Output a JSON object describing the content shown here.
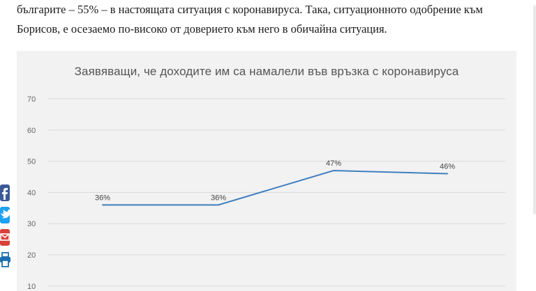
{
  "article": {
    "line1": "българите – 55% – в настоящата ситуация с коронавируса. Така, ситуационното одобрение към",
    "line2": "Борисов, е осезаемо по-високо от доверието към него в обичайна ситуация."
  },
  "share": {
    "facebook_icon": "facebook-icon",
    "twitter_icon": "twitter-icon",
    "email_icon": "email-icon",
    "print_icon": "print-icon",
    "colors": {
      "facebook": "#3b5998",
      "twitter": "#1da1f2",
      "email": "#d8413a",
      "print": "#1b6fb0"
    }
  },
  "chart_data": {
    "type": "line",
    "title": "Заявяващи, че доходите им са намалели във връзка с коронавируса",
    "categories": [
      "",
      "",
      "",
      ""
    ],
    "series": [
      {
        "values": [
          36,
          36,
          47,
          46
        ],
        "color": "#3f7fbf"
      }
    ],
    "data_labels": [
      "36%",
      "36%",
      "47%",
      "46%"
    ],
    "y_ticks": [
      70,
      60,
      50,
      40,
      30,
      20,
      10
    ],
    "ylim": [
      10,
      70
    ],
    "grid": true,
    "legend": "none"
  }
}
